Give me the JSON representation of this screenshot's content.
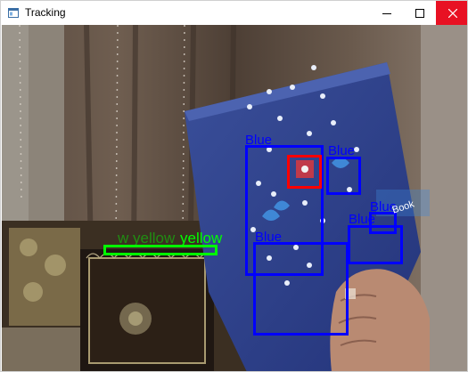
{
  "window": {
    "title": "Tracking",
    "title_icon": "app-window-icon",
    "controls": {
      "minimize_icon": "minimize-icon",
      "maximize_icon": "maximize-icon",
      "close_icon": "close-icon",
      "close_color": "#e81123"
    }
  },
  "camera_feed": {
    "detections": [
      {
        "label": "Blue",
        "color": "#0000ff"
      },
      {
        "label": "Blue",
        "color": "#0000ff"
      },
      {
        "label": "Blue",
        "color": "#0000ff"
      },
      {
        "label": "Blue",
        "color": "#0000ff"
      },
      {
        "label": "Blue",
        "color": "#0000ff"
      },
      {
        "label": "Blue",
        "color": "#0000ff"
      },
      {
        "label": "",
        "color": "#ff0000"
      },
      {
        "label": "yellow",
        "color": "#00ff00"
      }
    ],
    "book_text": "Book"
  }
}
